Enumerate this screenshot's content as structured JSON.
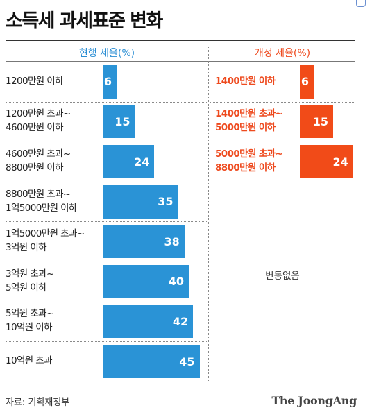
{
  "chart_data": {
    "type": "bar",
    "title": "소득세 과세표준 변화",
    "series": [
      {
        "name": "현행 세율(%)",
        "categories": [
          "1200만원 이하",
          "1200만원 초과~\n4600만원 이하",
          "4600만원 초과~\n8800만원 이하",
          "8800만원 초과~\n1억5000만원 이하",
          "1억5000만원 초과~\n3억원 이하",
          "3억원 초과~\n5억원 이하",
          "5억원 초과~\n10억원 이하",
          "10억원 초과"
        ],
        "values": [
          6,
          15,
          24,
          35,
          38,
          40,
          42,
          45
        ]
      },
      {
        "name": "개정 세율(%)",
        "categories": [
          "1400만원 이하",
          "1400만원 초과~\n5000만원 이하",
          "5000만원 초과~\n8800만원 이하"
        ],
        "values": [
          6,
          15,
          24
        ]
      }
    ],
    "note": "변동없음",
    "source": "자료: 기획재정부",
    "logo": "The JoongAng",
    "colors": {
      "current": "#2a93d6",
      "revised": "#f14b18"
    }
  }
}
